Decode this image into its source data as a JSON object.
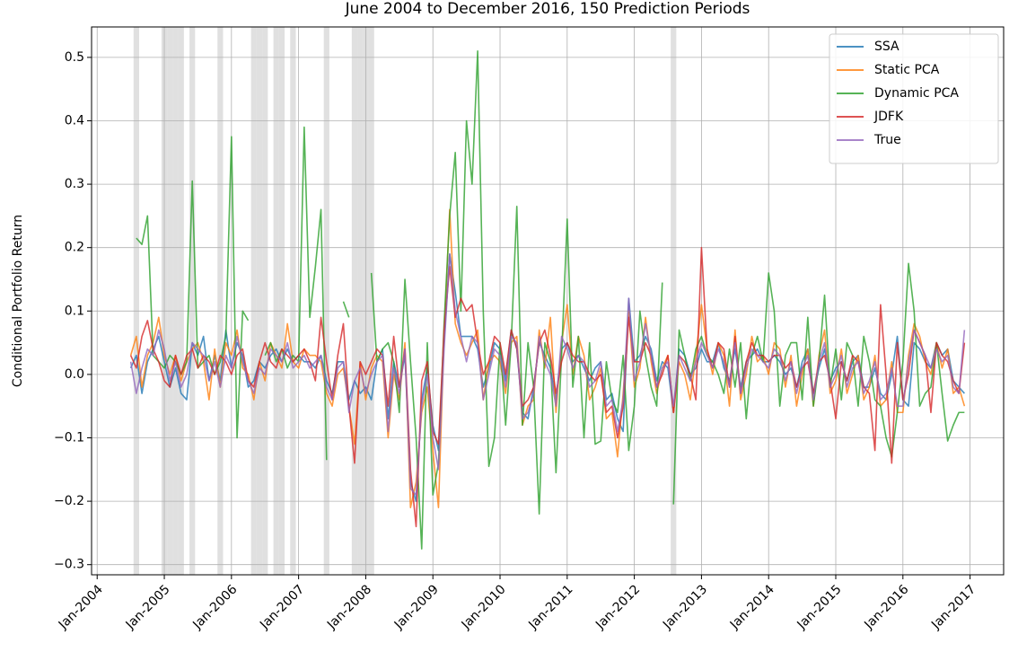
{
  "chart_data": {
    "type": "line",
    "title": "June 2004 to December 2016, 150 Prediction Periods",
    "ylabel": "Conditional Portfolio Return",
    "x": [
      "2004-07",
      "2004-08",
      "2004-09",
      "2004-10",
      "2004-11",
      "2004-12",
      "2005-01",
      "2005-02",
      "2005-03",
      "2005-04",
      "2005-05",
      "2005-06",
      "2005-07",
      "2005-08",
      "2005-09",
      "2005-10",
      "2005-11",
      "2005-12",
      "2006-01",
      "2006-02",
      "2006-03",
      "2006-04",
      "2006-05",
      "2006-06",
      "2006-07",
      "2006-08",
      "2006-09",
      "2006-10",
      "2006-11",
      "2006-12",
      "2007-01",
      "2007-02",
      "2007-03",
      "2007-04",
      "2007-05",
      "2007-06",
      "2007-07",
      "2007-08",
      "2007-09",
      "2007-10",
      "2007-11",
      "2007-12",
      "2008-01",
      "2008-02",
      "2008-03",
      "2008-04",
      "2008-05",
      "2008-06",
      "2008-07",
      "2008-08",
      "2008-09",
      "2008-10",
      "2008-11",
      "2008-12",
      "2009-01",
      "2009-02",
      "2009-03",
      "2009-04",
      "2009-05",
      "2009-06",
      "2009-07",
      "2009-08",
      "2009-09",
      "2009-10",
      "2009-11",
      "2009-12",
      "2010-01",
      "2010-02",
      "2010-03",
      "2010-04",
      "2010-05",
      "2010-06",
      "2010-07",
      "2010-08",
      "2010-09",
      "2010-10",
      "2010-11",
      "2010-12",
      "2011-01",
      "2011-02",
      "2011-03",
      "2011-04",
      "2011-05",
      "2011-06",
      "2011-07",
      "2011-08",
      "2011-09",
      "2011-10",
      "2011-11",
      "2011-12",
      "2012-01",
      "2012-02",
      "2012-03",
      "2012-04",
      "2012-05",
      "2012-06",
      "2012-07",
      "2012-08",
      "2012-09",
      "2012-10",
      "2012-11",
      "2012-12",
      "2013-01",
      "2013-02",
      "2013-03",
      "2013-04",
      "2013-05",
      "2013-06",
      "2013-07",
      "2013-08",
      "2013-09",
      "2013-10",
      "2013-11",
      "2013-12",
      "2014-01",
      "2014-02",
      "2014-03",
      "2014-04",
      "2014-05",
      "2014-06",
      "2014-07",
      "2014-08",
      "2014-09",
      "2014-10",
      "2014-11",
      "2014-12",
      "2015-01",
      "2015-02",
      "2015-03",
      "2015-04",
      "2015-05",
      "2015-06",
      "2015-07",
      "2015-08",
      "2015-09",
      "2015-10",
      "2015-11",
      "2015-12",
      "2016-01",
      "2016-02",
      "2016-03",
      "2016-04",
      "2016-05",
      "2016-06",
      "2016-07",
      "2016-08",
      "2016-09",
      "2016-10",
      "2016-11",
      "2016-12"
    ],
    "series": [
      {
        "name": "SSA",
        "color": "#1f77b4",
        "values": [
          0.01,
          0.03,
          -0.03,
          0.02,
          0.04,
          0.06,
          0.02,
          -0.02,
          0.01,
          -0.03,
          -0.04,
          0.05,
          0.03,
          0.06,
          -0.01,
          0.03,
          -0.01,
          0.07,
          0.01,
          0.05,
          0.03,
          -0.02,
          -0.01,
          0.02,
          0.01,
          0.03,
          0.04,
          0.02,
          0.04,
          0.02,
          0.03,
          0.02,
          0.02,
          0.01,
          0.03,
          -0.01,
          -0.03,
          0.02,
          0.02,
          -0.04,
          -0.01,
          -0.03,
          -0.02,
          -0.04,
          0.02,
          0.04,
          -0.07,
          0.02,
          -0.02,
          0.03,
          -0.17,
          -0.2,
          -0.04,
          0.01,
          -0.08,
          -0.12,
          0.05,
          0.19,
          0.13,
          0.06,
          0.06,
          0.06,
          0.04,
          -0.02,
          0.01,
          0.05,
          0.04,
          -0.01,
          0.07,
          0.04,
          -0.06,
          -0.07,
          -0.02,
          0.05,
          0.03,
          0.01,
          -0.04,
          0.04,
          0.05,
          0.02,
          0.03,
          0.01,
          -0.01,
          0.01,
          0.02,
          -0.04,
          -0.03,
          -0.07,
          -0.09,
          0.12,
          0.02,
          0.03,
          0.06,
          0.04,
          -0.01,
          0.02,
          0.01,
          -0.06,
          0.04,
          0.03,
          0.0,
          0.01,
          0.04,
          0.02,
          0.02,
          0.05,
          0.01,
          -0.01,
          0.04,
          -0.02,
          0.02,
          0.03,
          0.04,
          0.02,
          0.02,
          0.03,
          0.02,
          0.0,
          0.01,
          -0.02,
          0.02,
          0.04,
          -0.03,
          0.01,
          0.04,
          -0.01,
          0.01,
          0.02,
          -0.01,
          0.02,
          0.03,
          -0.02,
          -0.02,
          0.01,
          -0.03,
          -0.04,
          0.0,
          0.06,
          -0.04,
          -0.05,
          0.05,
          0.04,
          0.02,
          0.01,
          0.05,
          0.03,
          0.04,
          -0.01,
          -0.02,
          -0.03
        ]
      },
      {
        "name": "Static PCA",
        "color": "#ff7f0e",
        "values": [
          0.03,
          0.06,
          -0.02,
          0.03,
          0.05,
          0.09,
          0.03,
          0.0,
          0.03,
          -0.01,
          0.02,
          0.04,
          0.05,
          0.02,
          -0.04,
          0.04,
          -0.02,
          0.05,
          0.03,
          0.07,
          0.01,
          0.0,
          -0.04,
          0.02,
          -0.01,
          0.05,
          0.03,
          0.01,
          0.08,
          0.02,
          0.01,
          0.04,
          0.03,
          0.03,
          0.02,
          -0.03,
          -0.05,
          0.0,
          0.01,
          -0.05,
          -0.11,
          0.02,
          -0.04,
          0.01,
          0.03,
          0.02,
          -0.1,
          0.0,
          -0.04,
          0.05,
          -0.21,
          -0.17,
          -0.06,
          -0.02,
          -0.12,
          -0.21,
          0.06,
          0.26,
          0.08,
          0.05,
          0.03,
          0.05,
          0.07,
          -0.04,
          0.02,
          0.03,
          0.02,
          -0.03,
          0.05,
          0.06,
          -0.08,
          -0.05,
          -0.04,
          0.07,
          0.01,
          0.09,
          -0.06,
          0.05,
          0.11,
          0.0,
          0.06,
          0.03,
          -0.04,
          -0.02,
          0.01,
          -0.07,
          -0.06,
          -0.13,
          -0.03,
          0.1,
          -0.02,
          0.01,
          0.09,
          0.02,
          -0.03,
          0.01,
          0.03,
          -0.06,
          0.02,
          0.0,
          -0.04,
          0.03,
          0.11,
          0.04,
          0.0,
          0.05,
          0.03,
          -0.05,
          0.07,
          -0.04,
          0.0,
          0.06,
          0.02,
          0.03,
          0.0,
          0.05,
          0.04,
          -0.02,
          0.03,
          -0.05,
          0.0,
          0.04,
          -0.05,
          0.03,
          0.07,
          -0.03,
          -0.01,
          0.04,
          -0.03,
          0.0,
          0.03,
          -0.04,
          -0.02,
          0.03,
          -0.05,
          -0.04,
          0.02,
          -0.06,
          -0.06,
          0.03,
          0.08,
          0.06,
          0.02,
          0.0,
          0.05,
          0.01,
          0.04,
          -0.03,
          -0.02,
          -0.05
        ]
      },
      {
        "name": "Dynamic PCA",
        "color": "#2ca02c",
        "values": [
          null,
          0.215,
          0.205,
          0.25,
          0.03,
          0.02,
          0.01,
          0.03,
          0.02,
          0.0,
          0.02,
          0.305,
          0.01,
          0.02,
          0.03,
          0.0,
          0.02,
          0.06,
          0.375,
          -0.1,
          0.1,
          0.085,
          null,
          null,
          0.03,
          0.05,
          0.02,
          0.04,
          0.01,
          0.03,
          0.02,
          0.39,
          0.09,
          0.17,
          0.26,
          -0.135,
          null,
          null,
          0.115,
          0.09,
          null,
          null,
          null,
          0.16,
          0.02,
          0.04,
          0.05,
          0.02,
          -0.06,
          0.15,
          0.02,
          -0.1,
          -0.275,
          0.05,
          -0.19,
          -0.14,
          0.08,
          0.25,
          0.35,
          0.1,
          0.4,
          0.3,
          0.51,
          0.1,
          -0.145,
          -0.1,
          0.05,
          -0.08,
          0.05,
          0.265,
          -0.08,
          0.05,
          -0.02,
          -0.22,
          0.05,
          0.02,
          -0.155,
          0.03,
          0.245,
          -0.02,
          0.06,
          -0.1,
          0.05,
          -0.11,
          -0.105,
          0.02,
          -0.04,
          -0.06,
          0.03,
          -0.12,
          -0.05,
          0.1,
          0.03,
          -0.02,
          -0.05,
          0.145,
          null,
          -0.205,
          0.07,
          0.03,
          -0.01,
          0.04,
          0.06,
          0.03,
          0.02,
          0.0,
          -0.03,
          0.04,
          -0.02,
          0.05,
          -0.07,
          0.03,
          0.06,
          0.02,
          0.16,
          0.1,
          -0.05,
          0.03,
          0.05,
          0.05,
          -0.04,
          0.09,
          -0.05,
          0.02,
          0.125,
          -0.02,
          0.04,
          -0.04,
          0.05,
          0.03,
          -0.05,
          0.06,
          0.02,
          -0.04,
          -0.05,
          -0.1,
          -0.13,
          -0.06,
          0.02,
          0.175,
          0.1,
          -0.05,
          -0.03,
          -0.02,
          0.05,
          -0.03,
          -0.105,
          -0.08,
          -0.06,
          -0.06
        ]
      },
      {
        "name": "JDFK",
        "color": "#d62728",
        "values": [
          0.03,
          0.01,
          0.06,
          0.085,
          0.04,
          0.02,
          -0.01,
          -0.02,
          0.03,
          0.0,
          0.03,
          0.04,
          0.01,
          0.03,
          0.02,
          0.0,
          0.03,
          0.02,
          0.0,
          0.03,
          0.04,
          -0.01,
          -0.02,
          0.02,
          0.05,
          0.02,
          0.01,
          0.04,
          0.03,
          0.02,
          0.03,
          0.04,
          0.02,
          -0.01,
          0.09,
          0.02,
          -0.04,
          0.03,
          0.08,
          -0.05,
          -0.14,
          0.02,
          0.0,
          0.02,
          0.04,
          0.03,
          -0.05,
          0.06,
          -0.02,
          0.04,
          -0.15,
          -0.24,
          -0.01,
          0.02,
          -0.09,
          -0.11,
          0.07,
          0.17,
          0.09,
          0.12,
          0.1,
          0.11,
          0.05,
          0.0,
          0.02,
          0.06,
          0.05,
          0.0,
          0.07,
          0.04,
          -0.05,
          -0.04,
          -0.02,
          0.05,
          0.07,
          0.03,
          -0.03,
          0.02,
          0.05,
          0.03,
          0.02,
          0.02,
          0.0,
          -0.01,
          0.0,
          -0.06,
          -0.05,
          -0.1,
          -0.05,
          0.09,
          0.02,
          0.02,
          0.05,
          0.03,
          -0.02,
          0.0,
          0.03,
          -0.06,
          0.03,
          0.02,
          0.0,
          -0.04,
          0.2,
          0.04,
          0.01,
          0.05,
          0.04,
          -0.02,
          0.06,
          -0.03,
          0.02,
          0.05,
          0.03,
          0.03,
          0.02,
          0.03,
          0.03,
          0.01,
          0.02,
          -0.02,
          0.01,
          0.02,
          -0.03,
          0.02,
          0.03,
          -0.01,
          -0.07,
          0.02,
          -0.01,
          0.03,
          0.02,
          -0.02,
          -0.03,
          -0.12,
          0.11,
          0.0,
          -0.14,
          0.05,
          -0.04,
          0.0,
          0.07,
          0.05,
          0.03,
          -0.06,
          0.05,
          0.03,
          0.02,
          -0.01,
          -0.03,
          0.05
        ]
      },
      {
        "name": "True",
        "color": "#9467bd",
        "values": [
          0.02,
          -0.03,
          0.01,
          0.04,
          0.03,
          0.07,
          0.04,
          -0.01,
          0.02,
          -0.02,
          0.0,
          0.05,
          0.04,
          0.03,
          -0.01,
          0.02,
          -0.02,
          0.03,
          0.01,
          0.06,
          0.02,
          -0.01,
          -0.03,
          0.01,
          0.0,
          0.04,
          0.03,
          0.02,
          0.05,
          0.01,
          0.02,
          0.03,
          0.01,
          0.02,
          0.03,
          -0.02,
          -0.04,
          0.01,
          0.02,
          -0.06,
          -0.01,
          0.01,
          -0.03,
          0.0,
          0.02,
          0.03,
          -0.09,
          0.01,
          -0.03,
          0.04,
          -0.18,
          -0.19,
          -0.05,
          0.0,
          -0.1,
          -0.15,
          0.04,
          0.19,
          0.1,
          0.06,
          0.02,
          0.06,
          0.05,
          -0.04,
          0.0,
          0.04,
          0.03,
          -0.02,
          0.06,
          0.05,
          -0.07,
          -0.06,
          -0.03,
          0.06,
          0.02,
          0.0,
          -0.05,
          0.06,
          0.04,
          0.01,
          0.03,
          0.02,
          -0.02,
          -0.01,
          0.02,
          -0.05,
          -0.04,
          -0.09,
          -0.04,
          0.12,
          -0.01,
          0.02,
          0.08,
          0.03,
          -0.02,
          0.01,
          0.02,
          -0.05,
          0.03,
          0.01,
          -0.01,
          0.02,
          0.05,
          0.03,
          0.01,
          0.04,
          0.02,
          -0.02,
          0.05,
          -0.03,
          0.01,
          0.04,
          0.03,
          0.02,
          0.01,
          0.04,
          0.03,
          -0.01,
          0.02,
          -0.03,
          0.01,
          0.03,
          -0.04,
          0.02,
          0.05,
          -0.02,
          0.0,
          0.03,
          -0.02,
          0.01,
          0.02,
          -0.03,
          -0.01,
          0.02,
          -0.04,
          -0.03,
          0.01,
          -0.05,
          -0.05,
          0.02,
          0.07,
          0.05,
          0.03,
          0.01,
          0.04,
          0.02,
          0.03,
          -0.02,
          -0.03,
          0.07
        ]
      }
    ],
    "shaded": [
      "2004-08",
      "2005-01",
      "2005-02",
      "2005-03",
      "2005-04",
      "2005-06",
      "2005-11",
      "2006-05",
      "2006-06",
      "2006-07",
      "2006-09",
      "2006-10",
      "2006-12",
      "2007-06",
      "2007-11",
      "2007-12",
      "2008-01",
      "2008-02",
      "2012-08"
    ],
    "xlim": [
      "2003-12",
      "2017-07"
    ],
    "xticks": [
      {
        "value": "2004-01",
        "label": "Jan-2004"
      },
      {
        "value": "2005-01",
        "label": "Jan-2005"
      },
      {
        "value": "2006-01",
        "label": "Jan-2006"
      },
      {
        "value": "2007-01",
        "label": "Jan-2007"
      },
      {
        "value": "2008-01",
        "label": "Jan-2008"
      },
      {
        "value": "2009-01",
        "label": "Jan-2009"
      },
      {
        "value": "2010-01",
        "label": "Jan-2010"
      },
      {
        "value": "2011-01",
        "label": "Jan-2011"
      },
      {
        "value": "2012-01",
        "label": "Jan-2012"
      },
      {
        "value": "2013-01",
        "label": "Jan-2013"
      },
      {
        "value": "2014-01",
        "label": "Jan-2014"
      },
      {
        "value": "2015-01",
        "label": "Jan-2015"
      },
      {
        "value": "2016-01",
        "label": "Jan-2016"
      },
      {
        "value": "2017-01",
        "label": "Jan-2017"
      }
    ],
    "ylim": [
      -0.316,
      0.548
    ],
    "yticks": [
      {
        "value": -0.3,
        "label": "−0.3"
      },
      {
        "value": -0.2,
        "label": "−0.2"
      },
      {
        "value": -0.1,
        "label": "−0.1"
      },
      {
        "value": 0,
        "label": "0.0"
      },
      0.1,
      0.2,
      0.3,
      0.4,
      0.5
    ],
    "grid": true,
    "legend": "upper right"
  }
}
